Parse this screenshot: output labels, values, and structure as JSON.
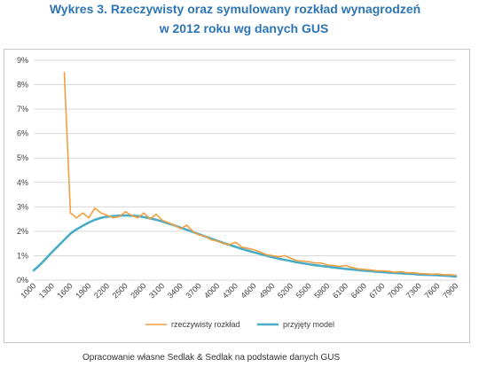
{
  "title_line1": "Wykres 3. Rzeczywisty oraz symulowany rozkład wynagrodzeń",
  "title_line2": "w 2012 roku wg danych GUS",
  "source": "Opracowanie własne Sedlak & Sedlak na podstawie danych GUS",
  "chart_data": {
    "type": "line",
    "title": "Wykres 3. Rzeczywisty oraz symulowany rozkład wynagrodzeń w 2012 roku wg danych GUS",
    "xlabel": "",
    "ylabel": "",
    "xlim": [
      1000,
      7900
    ],
    "ylim": [
      0,
      9
    ],
    "x_tick_labels": [
      "1000",
      "1300",
      "1600",
      "1900",
      "2200",
      "2500",
      "2800",
      "3100",
      "3400",
      "3700",
      "4000",
      "4300",
      "4600",
      "4900",
      "5200",
      "5500",
      "5800",
      "6100",
      "6400",
      "6700",
      "7000",
      "7300",
      "7600",
      "7900"
    ],
    "y_tick_labels": [
      "0%",
      "1%",
      "2%",
      "3%",
      "4%",
      "5%",
      "6%",
      "7%",
      "8%",
      "9%"
    ],
    "y_ticks": [
      0,
      1,
      2,
      3,
      4,
      5,
      6,
      7,
      8,
      9
    ],
    "grid": true,
    "legend_position": "bottom",
    "series": [
      {
        "name": "rzeczywisty rozkład",
        "color": "#f0a040",
        "points": [
          [
            1500,
            8.5
          ],
          [
            1600,
            2.75
          ],
          [
            1700,
            2.55
          ],
          [
            1800,
            2.75
          ],
          [
            1900,
            2.55
          ],
          [
            2000,
            2.95
          ],
          [
            2100,
            2.75
          ],
          [
            2200,
            2.65
          ],
          [
            2300,
            2.55
          ],
          [
            2400,
            2.6
          ],
          [
            2500,
            2.8
          ],
          [
            2600,
            2.65
          ],
          [
            2700,
            2.55
          ],
          [
            2800,
            2.75
          ],
          [
            2900,
            2.5
          ],
          [
            3000,
            2.7
          ],
          [
            3100,
            2.45
          ],
          [
            3200,
            2.35
          ],
          [
            3300,
            2.25
          ],
          [
            3400,
            2.1
          ],
          [
            3500,
            2.25
          ],
          [
            3600,
            2.0
          ],
          [
            3700,
            1.85
          ],
          [
            3800,
            1.8
          ],
          [
            3900,
            1.65
          ],
          [
            4000,
            1.6
          ],
          [
            4100,
            1.5
          ],
          [
            4200,
            1.45
          ],
          [
            4300,
            1.55
          ],
          [
            4400,
            1.35
          ],
          [
            4500,
            1.3
          ],
          [
            4600,
            1.25
          ],
          [
            4700,
            1.15
          ],
          [
            4800,
            1.05
          ],
          [
            4900,
            1.0
          ],
          [
            5000,
            0.95
          ],
          [
            5100,
            1.0
          ],
          [
            5200,
            0.9
          ],
          [
            5300,
            0.8
          ],
          [
            5400,
            0.78
          ],
          [
            5500,
            0.75
          ],
          [
            5600,
            0.7
          ],
          [
            5700,
            0.7
          ],
          [
            5800,
            0.62
          ],
          [
            5900,
            0.6
          ],
          [
            6000,
            0.56
          ],
          [
            6100,
            0.6
          ],
          [
            6200,
            0.52
          ],
          [
            6300,
            0.46
          ],
          [
            6400,
            0.44
          ],
          [
            6500,
            0.42
          ],
          [
            6600,
            0.38
          ],
          [
            6700,
            0.38
          ],
          [
            6800,
            0.36
          ],
          [
            6900,
            0.32
          ],
          [
            7000,
            0.35
          ],
          [
            7100,
            0.3
          ],
          [
            7200,
            0.3
          ],
          [
            7300,
            0.27
          ],
          [
            7400,
            0.26
          ],
          [
            7500,
            0.24
          ],
          [
            7600,
            0.25
          ],
          [
            7700,
            0.22
          ],
          [
            7800,
            0.22
          ],
          [
            7900,
            0.2
          ]
        ]
      },
      {
        "name": "przyjęty model",
        "color": "#4bacc6",
        "points": [
          [
            1000,
            0.4
          ],
          [
            1100,
            0.62
          ],
          [
            1200,
            0.88
          ],
          [
            1300,
            1.15
          ],
          [
            1400,
            1.4
          ],
          [
            1500,
            1.65
          ],
          [
            1600,
            1.9
          ],
          [
            1700,
            2.08
          ],
          [
            1800,
            2.22
          ],
          [
            1900,
            2.36
          ],
          [
            2000,
            2.47
          ],
          [
            2100,
            2.55
          ],
          [
            2200,
            2.6
          ],
          [
            2300,
            2.62
          ],
          [
            2400,
            2.64
          ],
          [
            2500,
            2.65
          ],
          [
            2600,
            2.64
          ],
          [
            2700,
            2.62
          ],
          [
            2800,
            2.58
          ],
          [
            2900,
            2.53
          ],
          [
            3000,
            2.47
          ],
          [
            3100,
            2.4
          ],
          [
            3200,
            2.32
          ],
          [
            3300,
            2.24
          ],
          [
            3400,
            2.15
          ],
          [
            3500,
            2.06
          ],
          [
            3600,
            1.97
          ],
          [
            3700,
            1.88
          ],
          [
            3800,
            1.79
          ],
          [
            3900,
            1.7
          ],
          [
            4000,
            1.61
          ],
          [
            4100,
            1.52
          ],
          [
            4200,
            1.44
          ],
          [
            4300,
            1.36
          ],
          [
            4400,
            1.28
          ],
          [
            4500,
            1.21
          ],
          [
            4600,
            1.14
          ],
          [
            4700,
            1.07
          ],
          [
            4800,
            1.0
          ],
          [
            4900,
            0.94
          ],
          [
            5000,
            0.88
          ],
          [
            5100,
            0.83
          ],
          [
            5200,
            0.78
          ],
          [
            5300,
            0.73
          ],
          [
            5400,
            0.69
          ],
          [
            5500,
            0.65
          ],
          [
            5600,
            0.61
          ],
          [
            5700,
            0.58
          ],
          [
            5800,
            0.55
          ],
          [
            5900,
            0.52
          ],
          [
            6000,
            0.49
          ],
          [
            6100,
            0.46
          ],
          [
            6200,
            0.44
          ],
          [
            6300,
            0.41
          ],
          [
            6400,
            0.39
          ],
          [
            6500,
            0.37
          ],
          [
            6600,
            0.35
          ],
          [
            6700,
            0.33
          ],
          [
            6800,
            0.31
          ],
          [
            6900,
            0.29
          ],
          [
            7000,
            0.28
          ],
          [
            7100,
            0.26
          ],
          [
            7200,
            0.25
          ],
          [
            7300,
            0.23
          ],
          [
            7400,
            0.22
          ],
          [
            7500,
            0.21
          ],
          [
            7600,
            0.2
          ],
          [
            7700,
            0.19
          ],
          [
            7800,
            0.17
          ],
          [
            7900,
            0.15
          ]
        ]
      }
    ]
  }
}
